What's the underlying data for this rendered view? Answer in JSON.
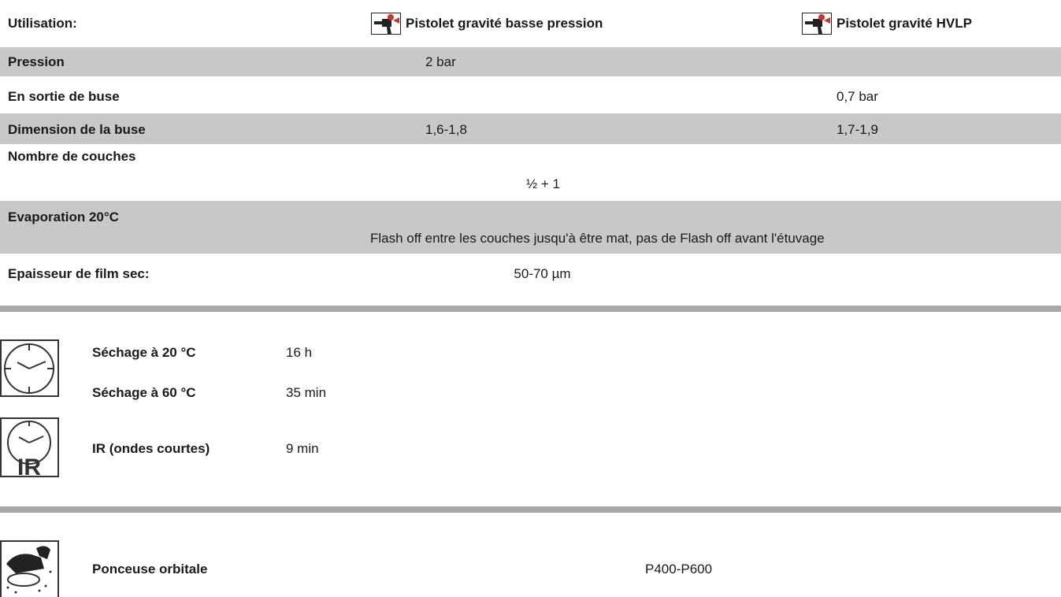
{
  "header": {
    "label": "Utilisation:",
    "col1": "Pistolet gravité basse pression",
    "col2": "Pistolet gravité HVLP"
  },
  "rows": {
    "pression": {
      "label": "Pression",
      "v1": "2 bar",
      "v2": ""
    },
    "sortie": {
      "label": "En sortie de buse",
      "v1": "",
      "v2": "0,7 bar"
    },
    "buse": {
      "label": "Dimension de la buse",
      "v1": "1,6-1,8",
      "v2": "1,7-1,9"
    },
    "couches": {
      "label": "Nombre de couches",
      "v": "½ + 1"
    },
    "evaporation": {
      "label": "Evaporation 20°C",
      "v": "Flash off entre les couches jusqu'à être mat, pas de Flash off avant l'étuvage"
    },
    "epaisseur": {
      "label": "Epaisseur de film sec:",
      "v": "50-70 µm"
    }
  },
  "drying": {
    "s20": {
      "label": "Séchage à 20 °C",
      "v": "16 h"
    },
    "s60": {
      "label": "Séchage à 60 °C",
      "v": "35 min"
    },
    "ir": {
      "label": "IR (ondes courtes)",
      "v": "9 min"
    },
    "ir_icon_text": "IR"
  },
  "sanding": {
    "label": "Ponceuse orbitale",
    "v": "P400-P600"
  },
  "icons": {
    "spray_gun_1": "spray-gun-icon",
    "spray_gun_2": "spray-gun-icon",
    "clock": "clock-icon",
    "ir_clock": "ir-clock-icon",
    "sander": "orbital-sander-icon"
  }
}
